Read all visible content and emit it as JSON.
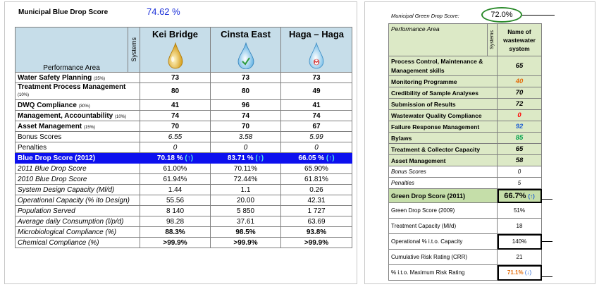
{
  "municipal": {
    "title": "Municipal Blue Drop Score",
    "score": "74.62 %"
  },
  "blue": {
    "perf_header": "Performance Area",
    "systems_header": "Systems",
    "systems": [
      "Kei Bridge",
      "Cinsta East",
      "Haga – Haga"
    ],
    "area_rows": [
      {
        "label": "Water Safety Planning",
        "weight": "(35%)",
        "values": [
          "73",
          "73",
          "73"
        ]
      },
      {
        "label": "Treatment Process Management",
        "weight": "(10%)",
        "values": [
          "80",
          "80",
          "49"
        ]
      },
      {
        "label": "DWQ Compliance",
        "weight": "(30%)",
        "values": [
          "41",
          "96",
          "41"
        ]
      },
      {
        "label": "Management, Accountability",
        "weight": "(10%)",
        "values": [
          "74",
          "74",
          "74"
        ]
      },
      {
        "label": "Asset Management",
        "weight": "(15%)",
        "values": [
          "70",
          "70",
          "67"
        ]
      }
    ],
    "bonus": {
      "label": "Bonus Scores",
      "values": [
        "6.55",
        "3.58",
        "5.99"
      ]
    },
    "penalties": {
      "label": "Penalties",
      "values": [
        "0",
        "0",
        "0"
      ]
    },
    "score_row": {
      "label": "Blue Drop Score (2012)",
      "values": [
        "70.18 %",
        "83.71 %",
        "66.05 %"
      ],
      "arrow": "(↑)"
    },
    "detail_rows": [
      {
        "label": "2011 Blue Drop Score",
        "values": [
          "61.00%",
          "70.11%",
          "65.90%"
        ]
      },
      {
        "label": "2010 Blue Drop Score",
        "values": [
          "61.94%",
          "72.44%",
          "61.81%"
        ]
      },
      {
        "label": "System Design Capacity (Ml/d)",
        "values": [
          "1.44",
          "1.1",
          "0.26"
        ]
      },
      {
        "label": "Operational Capacity (% ito Design)",
        "values": [
          "55.56",
          "20.00",
          "42.31"
        ]
      },
      {
        "label": "Population Served",
        "values": [
          "8 140",
          "5 850",
          "1 727"
        ]
      },
      {
        "label": "Average daily Consumption (l/p/d)",
        "values": [
          "98.28",
          "37.61",
          "63.69"
        ]
      },
      {
        "label": "Microbiological Compliance (%)",
        "values": [
          "88.3%",
          "98.5%",
          "93.8%"
        ]
      },
      {
        "label": "Chemical Compliance (%)",
        "values": [
          ">99.9%",
          ">99.9%",
          ">99.9%"
        ]
      }
    ]
  },
  "green": {
    "label": "Municipal Green Drop Score:",
    "score": "72.0%",
    "perf_header": "Performance Area",
    "systems_header": "Systems",
    "name_header": "Name of wastewater system",
    "area_rows": [
      {
        "label": "Process Control, Maintenance &",
        "label2": "Management skills",
        "value": "65",
        "color": "#000000"
      },
      {
        "label": "Monitoring Programme",
        "value": "40",
        "color": "#e36c0a"
      },
      {
        "label": "Credibility of Sample Analyses",
        "value": "70",
        "color": "#000000"
      },
      {
        "label": "Submission of Results",
        "value": "72",
        "color": "#000000"
      },
      {
        "label": "Wastewater Quality Compliance",
        "value": "0",
        "color": "#ff0000"
      },
      {
        "label": "Failure Response Management",
        "value": "92",
        "color": "#1f5fd1"
      },
      {
        "label": "Bylaws",
        "value": "85",
        "color": "#00a04a"
      },
      {
        "label": "Treatment & Collector Capacity",
        "value": "65",
        "color": "#000000"
      },
      {
        "label": "Asset Management",
        "value": "58",
        "color": "#000000"
      }
    ],
    "bonus": {
      "label": "Bonus Scores",
      "value": "0"
    },
    "penalties": {
      "label": "Penalties",
      "value": "5"
    },
    "score_row": {
      "label": "Green Drop Score (2011)",
      "value": "66.7%",
      "arrow": "(↑)"
    },
    "plain_rows": [
      {
        "label": "Green Drop Score (2009)",
        "value": "51%"
      },
      {
        "label": "Treatment Capacity (Ml/d)",
        "value": "18"
      },
      {
        "label": "Operational % i.t.o. Capacity",
        "value": "140%"
      },
      {
        "label": "Cumulative Risk Rating (CRR)",
        "value": "21"
      }
    ],
    "risk_row": {
      "label": "% i.t.o. Maximum Risk Rating",
      "value": "71.1%",
      "arrow": "(↓)"
    }
  },
  "colors": {
    "blue_band": "#0d10ee",
    "blue_header": "#c6dde9",
    "green_header": "#dce9c6",
    "green_score": "#c5dea9",
    "orange": "#e36c0a"
  }
}
